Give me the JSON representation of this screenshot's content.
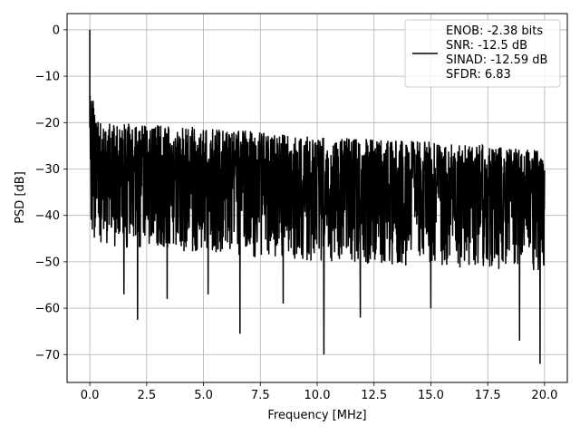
{
  "chart_data": {
    "type": "line",
    "title": "",
    "xlabel": "Frequency [MHz]",
    "ylabel": "PSD [dB]",
    "xlim": [
      -1.0,
      21.0
    ],
    "ylim": [
      -76,
      3.5
    ],
    "xticks": [
      0.0,
      2.5,
      5.0,
      7.5,
      10.0,
      12.5,
      15.0,
      17.5,
      20.0
    ],
    "xtick_labels": [
      "0.0",
      "2.5",
      "5.0",
      "7.5",
      "10.0",
      "12.5",
      "15.0",
      "17.5",
      "20.0"
    ],
    "yticks": [
      0,
      -10,
      -20,
      -30,
      -40,
      -50,
      -60,
      -70
    ],
    "ytick_labels": [
      "0",
      "−10",
      "−20",
      "−30",
      "−40",
      "−50",
      "−60",
      "−70"
    ],
    "grid": true,
    "legend_position": "top-right",
    "legend_lines": [
      "ENOB: -2.38 bits",
      "SNR: -12.5 dB",
      "SINAD: -12.59 dB",
      "SFDR: 6.83"
    ],
    "line_color": "#000000",
    "series": [
      {
        "x_range": [
          0.0,
          20.0
        ],
        "points": 2000,
        "peak": {
          "x": 0.0,
          "y": 0.0
        },
        "noise_upper_envelope": [
          [
            0.05,
            -12
          ],
          [
            0.3,
            -18
          ],
          [
            1.0,
            -20
          ],
          [
            5.0,
            -21
          ],
          [
            10.0,
            -23
          ],
          [
            15.0,
            -24
          ],
          [
            20.0,
            -26
          ]
        ],
        "noise_median": [
          [
            0.1,
            -28
          ],
          [
            1.0,
            -30
          ],
          [
            10.0,
            -32
          ],
          [
            20.0,
            -33
          ]
        ],
        "noise_lower_envelope": [
          [
            0.1,
            -45
          ],
          [
            1.0,
            -47
          ],
          [
            10.0,
            -50
          ],
          [
            20.0,
            -52
          ]
        ],
        "deep_nulls": [
          [
            1.5,
            -57
          ],
          [
            2.1,
            -62.5
          ],
          [
            3.4,
            -58
          ],
          [
            5.2,
            -57
          ],
          [
            6.6,
            -65.5
          ],
          [
            8.5,
            -59
          ],
          [
            10.3,
            -70
          ],
          [
            11.9,
            -62
          ],
          [
            15.0,
            -60
          ],
          [
            18.9,
            -67
          ],
          [
            19.8,
            -72
          ]
        ]
      }
    ]
  }
}
